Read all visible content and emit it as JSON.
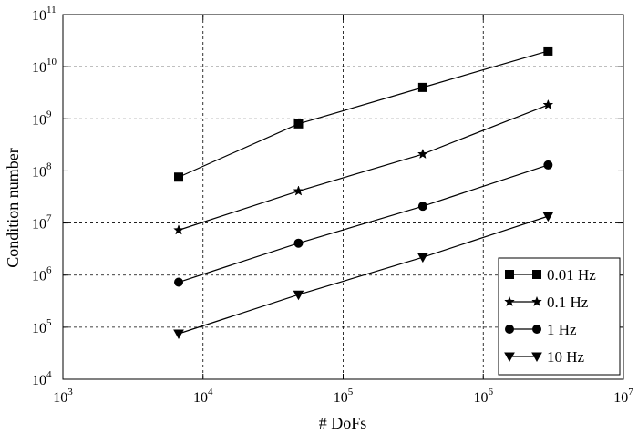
{
  "chart_data": {
    "type": "line",
    "xlabel": "# DoFs",
    "ylabel": "Condition number",
    "xscale": "log",
    "yscale": "log",
    "xlim": [
      1000,
      10000000
    ],
    "ylim": [
      10000,
      100000000000
    ],
    "grid": true,
    "legend_position": "bottom-right",
    "x_ticks": [
      {
        "base": "10",
        "exp": "3",
        "value": 1000
      },
      {
        "base": "10",
        "exp": "4",
        "value": 10000
      },
      {
        "base": "10",
        "exp": "5",
        "value": 100000
      },
      {
        "base": "10",
        "exp": "6",
        "value": 1000000
      },
      {
        "base": "10",
        "exp": "7",
        "value": 10000000
      }
    ],
    "y_ticks": [
      {
        "base": "10",
        "exp": "4",
        "value": 10000
      },
      {
        "base": "10",
        "exp": "5",
        "value": 100000
      },
      {
        "base": "10",
        "exp": "6",
        "value": 1000000
      },
      {
        "base": "10",
        "exp": "7",
        "value": 10000000
      },
      {
        "base": "10",
        "exp": "8",
        "value": 100000000
      },
      {
        "base": "10",
        "exp": "9",
        "value": 1000000000
      },
      {
        "base": "10",
        "exp": "10",
        "value": 10000000000
      },
      {
        "base": "10",
        "exp": "11",
        "value": 100000000000
      }
    ],
    "x": [
      6700,
      48000,
      370000,
      2900000
    ],
    "series": [
      {
        "name": "0.01 Hz",
        "marker": "square",
        "values": [
          76000000,
          800000000,
          4000000000,
          20000000000
        ]
      },
      {
        "name": "0.1 Hz",
        "marker": "star",
        "values": [
          7300000,
          41000000,
          210000000,
          1850000000
        ]
      },
      {
        "name": "1 Hz",
        "marker": "circle",
        "values": [
          730000,
          4100000,
          21000000,
          130000000
        ]
      },
      {
        "name": "10 Hz",
        "marker": "triangle-down",
        "values": [
          75000,
          420000,
          2200000,
          13500000
        ]
      }
    ]
  }
}
